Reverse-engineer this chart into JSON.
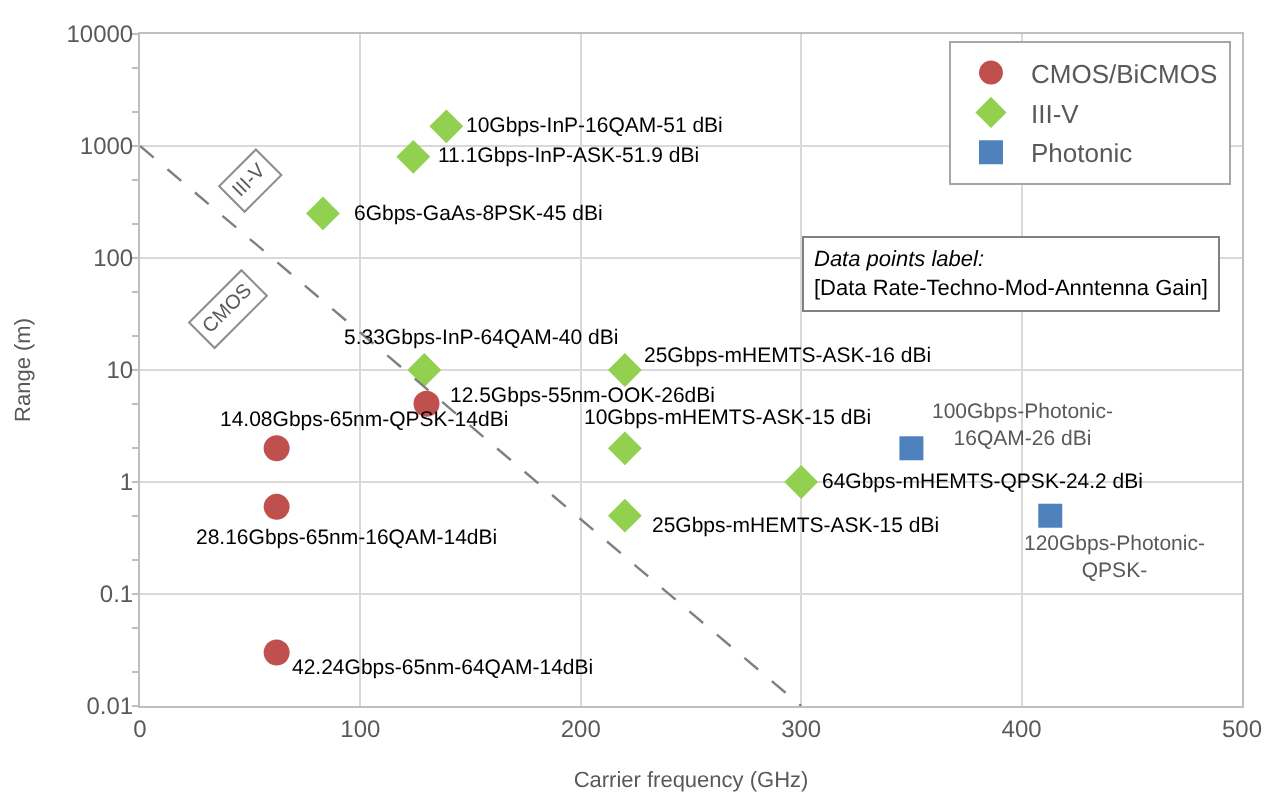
{
  "chart_data": {
    "type": "scatter",
    "xlabel": "Carrier frequency (GHz)",
    "ylabel": "Range (m)",
    "xlim": [
      0,
      500
    ],
    "xticks": [
      0,
      100,
      200,
      300,
      400,
      500
    ],
    "ylim": [
      0.01,
      10000
    ],
    "yticks": [
      0.01,
      0.1,
      1,
      10,
      100,
      1000,
      10000
    ],
    "log": "y",
    "grid": true,
    "legend": "top right",
    "series": [
      {
        "name": "CMOS/BiCMOS",
        "color": "#c0504d",
        "marker": "circle",
        "x": [
          62,
          62,
          62,
          130
        ],
        "values": [
          2,
          0.6,
          0.03,
          5
        ]
      },
      {
        "name": "III-V",
        "color": "#92d050",
        "marker": "diamond",
        "x": [
          139,
          124,
          83,
          129,
          220,
          220,
          220,
          300
        ],
        "values": [
          1500,
          800,
          250,
          10,
          10,
          2,
          0.5,
          1
        ]
      },
      {
        "name": "Photonic",
        "color": "#4f81bd",
        "marker": "square",
        "x": [
          350,
          413
        ],
        "values": [
          2,
          0.5
        ]
      },
      {
        "type": "line",
        "color": "#7f7f7f",
        "line_style": "dashed",
        "marker": "none",
        "x": [
          0,
          300
        ],
        "values": [
          1000,
          0.01
        ]
      }
    ],
    "annotations": [
      "III-V",
      "CMOS",
      "Data points label:\n[Data Rate-Techno-Mod-Anntenna Gain]",
      {
        "text": "14.08Gbps-65nm-QPSK-14dBi",
        "x": 62,
        "y": 2
      },
      {
        "text": "28.16Gbps-65nm-16QAM-14dBi",
        "x": 62,
        "y": 0.6
      },
      {
        "text": "42.24Gbps-65nm-64QAM-14dBi",
        "x": 62,
        "y": 0.03
      },
      {
        "text": "12.5Gbps-55nm-OOK-26dBi",
        "x": 130,
        "y": 5
      },
      {
        "text": "10Gbps-InP-16QAM-51 dBi",
        "x": 139,
        "y": 1500
      },
      {
        "text": "11.1Gbps-InP-ASK-51.9 dBi",
        "x": 124,
        "y": 800
      },
      {
        "text": "6Gbps-GaAs-8PSK-45 dBi",
        "x": 83,
        "y": 250
      },
      {
        "text": "5.33Gbps-InP-64QAM-40 dBi",
        "x": 129,
        "y": 10
      },
      {
        "text": "25Gbps-mHEMTS-ASK-16 dBi",
        "x": 220,
        "y": 10
      },
      {
        "text": "10Gbps-mHEMTS-ASK-15 dBi",
        "x": 220,
        "y": 2
      },
      {
        "text": "25Gbps-mHEMTS-ASK-15 dBi",
        "x": 220,
        "y": 0.5
      },
      {
        "text": "64Gbps-mHEMTS-QPSK-24.2 dBi",
        "x": 300,
        "y": 1
      },
      {
        "text": "100Gbps-Photonic-16QAM-26 dBi",
        "x": 350,
        "y": 2
      },
      {
        "text": "120Gbps-Photonic-QPSK-",
        "x": 413,
        "y": 0.5
      }
    ]
  }
}
